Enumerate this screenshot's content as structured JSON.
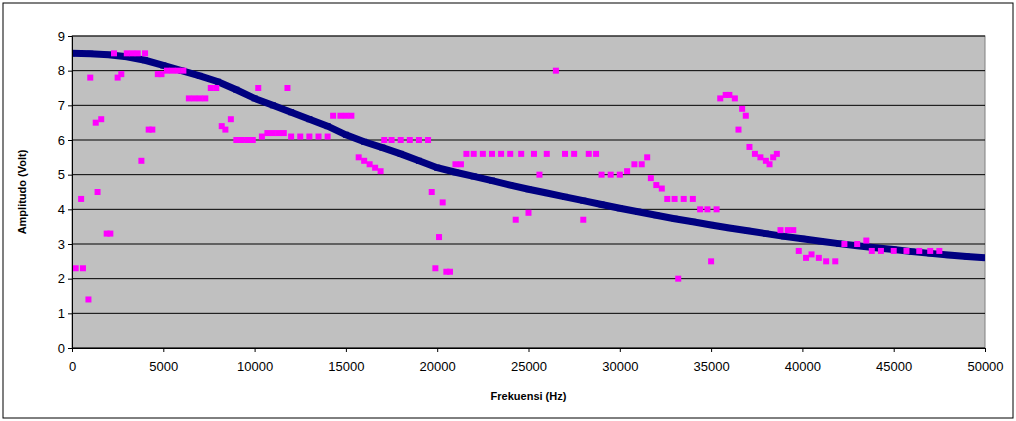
{
  "chart_data": {
    "type": "scatter",
    "x_label": "Frekuensi (Hz)",
    "y_label": "Amplitudo (Volt)",
    "xlim": [
      0,
      50000
    ],
    "ylim": [
      0,
      9
    ],
    "xticks": [
      0,
      5000,
      10000,
      15000,
      20000,
      25000,
      30000,
      35000,
      40000,
      45000,
      50000
    ],
    "yticks": [
      0,
      1,
      2,
      3,
      4,
      5,
      6,
      7,
      8,
      9
    ],
    "grid": true,
    "series": [
      {
        "type": "line",
        "color": "#000080",
        "marker": "square",
        "line_style": "solid",
        "x": [
          0,
          1000,
          2000,
          3000,
          4000,
          5000,
          6000,
          7000,
          8000,
          9000,
          10000,
          11000,
          12000,
          13000,
          14000,
          15000,
          16000,
          17000,
          18000,
          19000,
          20000,
          21000,
          22000,
          23000,
          24000,
          25000,
          26000,
          27000,
          28000,
          29000,
          30000,
          31000,
          32000,
          33000,
          34000,
          35000,
          36000,
          37000,
          38000,
          39000,
          40000,
          41000,
          42000,
          43000,
          44000,
          45000,
          46000,
          47000,
          48000,
          49000,
          50000
        ],
        "values": [
          8.5,
          8.49,
          8.46,
          8.4,
          8.3,
          8.15,
          8.0,
          7.85,
          7.68,
          7.45,
          7.2,
          7.0,
          6.8,
          6.6,
          6.4,
          6.15,
          5.95,
          5.78,
          5.6,
          5.4,
          5.2,
          5.07,
          4.95,
          4.83,
          4.7,
          4.58,
          4.47,
          4.36,
          4.25,
          4.14,
          4.03,
          3.93,
          3.83,
          3.73,
          3.64,
          3.55,
          3.46,
          3.38,
          3.3,
          3.22,
          3.15,
          3.08,
          3.01,
          2.95,
          2.89,
          2.84,
          2.78,
          2.73,
          2.68,
          2.64,
          2.6
        ]
      },
      {
        "type": "scatter",
        "color": "#ff00ff",
        "marker": "square",
        "x": [
          200,
          500,
          600,
          900,
          1000,
          1300,
          1400,
          1600,
          1900,
          2100,
          2300,
          2500,
          2700,
          3000,
          3300,
          3600,
          3800,
          4000,
          4200,
          4400,
          4700,
          4900,
          5200,
          5500,
          5800,
          6100,
          6400,
          6700,
          7000,
          7300,
          7600,
          7900,
          8200,
          8400,
          8700,
          9000,
          9300,
          9600,
          9900,
          10200,
          10400,
          10700,
          11000,
          11300,
          11600,
          11800,
          12000,
          12500,
          13000,
          13500,
          14000,
          14300,
          14700,
          15000,
          15300,
          15700,
          16000,
          16300,
          16600,
          16900,
          17100,
          17500,
          18000,
          18500,
          19000,
          19500,
          19700,
          19900,
          20100,
          20300,
          20500,
          20700,
          21000,
          21300,
          21600,
          22000,
          22500,
          23000,
          23500,
          24000,
          24300,
          24600,
          25000,
          25300,
          25600,
          26000,
          26500,
          27000,
          27500,
          28000,
          28300,
          28700,
          29000,
          29500,
          30000,
          30400,
          30800,
          31200,
          31500,
          31700,
          32000,
          32300,
          32600,
          33000,
          33200,
          33500,
          34000,
          34400,
          34800,
          35000,
          35300,
          35500,
          35800,
          36000,
          36300,
          36500,
          36700,
          36900,
          37100,
          37400,
          37700,
          38000,
          38200,
          38400,
          38600,
          38800,
          39200,
          39500,
          39800,
          40200,
          40500,
          40900,
          41300,
          41800,
          42300,
          43000,
          43500,
          43800,
          44300,
          45000,
          45700,
          46400,
          47000,
          47500
        ],
        "values": [
          2.3,
          4.3,
          2.3,
          1.4,
          7.8,
          6.5,
          4.5,
          6.6,
          3.3,
          3.3,
          8.5,
          7.8,
          7.9,
          8.5,
          8.5,
          8.5,
          5.4,
          8.5,
          6.3,
          6.3,
          7.9,
          7.9,
          8.0,
          8.0,
          8.0,
          8.0,
          7.2,
          7.2,
          7.2,
          7.2,
          7.5,
          7.5,
          6.4,
          6.3,
          6.6,
          6.0,
          6.0,
          6.0,
          6.0,
          7.5,
          6.1,
          6.2,
          6.2,
          6.2,
          6.2,
          7.5,
          6.1,
          6.1,
          6.1,
          6.1,
          6.1,
          6.7,
          6.7,
          6.7,
          6.7,
          5.5,
          5.4,
          5.3,
          5.2,
          5.1,
          6.0,
          6.0,
          6.0,
          6.0,
          6.0,
          6.0,
          4.5,
          2.3,
          3.2,
          4.2,
          2.2,
          2.2,
          5.3,
          5.3,
          5.6,
          5.6,
          5.6,
          5.6,
          5.6,
          5.6,
          3.7,
          5.6,
          3.9,
          5.6,
          5.0,
          5.6,
          8.0,
          5.6,
          5.6,
          3.7,
          5.6,
          5.6,
          5.0,
          5.0,
          5.0,
          5.1,
          5.3,
          5.3,
          5.5,
          4.9,
          4.7,
          4.6,
          4.3,
          4.3,
          2.0,
          4.3,
          4.3,
          4.0,
          4.0,
          2.5,
          4.0,
          7.2,
          7.3,
          7.3,
          7.2,
          6.3,
          6.9,
          6.7,
          5.8,
          5.6,
          5.5,
          5.4,
          5.3,
          5.5,
          5.6,
          3.4,
          3.4,
          3.4,
          2.8,
          2.6,
          2.7,
          2.6,
          2.5,
          2.5,
          3.0,
          3.0,
          3.1,
          2.8,
          2.8,
          2.8,
          2.8,
          2.8,
          2.8,
          2.8
        ]
      }
    ]
  }
}
